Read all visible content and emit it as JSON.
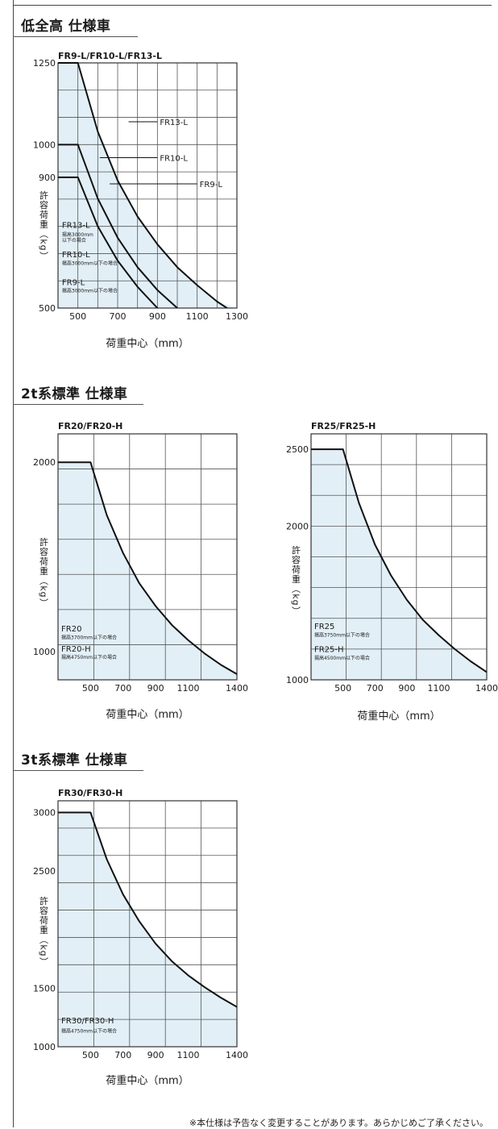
{
  "sections": [
    {
      "title": "低全高 仕様車"
    },
    {
      "title": "2t系標準 仕様車"
    },
    {
      "title": "3t系標準 仕様車"
    }
  ],
  "footer_note": "※本仕様は予告なく変更することがあります。あらかじめご了承ください。",
  "colors": {
    "fill": "#e2eff7",
    "grid": "#555555",
    "curve": "#111111",
    "text": "#1a1a1a"
  },
  "chart_data": [
    {
      "type": "line",
      "title": "FR9-L/FR10-L/FR13-L",
      "xlabel": "荷重中心（mm）",
      "ylabel": "許容荷重（kg）",
      "xlim": [
        400,
        1300
      ],
      "ylim": [
        500,
        1250
      ],
      "x_ticks": [
        500,
        700,
        900,
        1100,
        1300
      ],
      "x_tick_labels": [
        "500",
        "700",
        "900",
        "1100",
        "1300"
      ],
      "y_ticks": [
        500,
        900,
        1000,
        1250
      ],
      "y_tick_labels": [
        "500",
        "900",
        "1000",
        "1250"
      ],
      "grid": true,
      "series": [
        {
          "name": "FR13-L",
          "x": [
            400,
            500,
            600,
            700,
            800,
            900,
            1000,
            1100,
            1200,
            1300
          ],
          "y": [
            1250,
            1250,
            1040,
            890,
            780,
            695,
            625,
            570,
            520,
            480
          ]
        },
        {
          "name": "FR10-L",
          "x": [
            400,
            500,
            600,
            700,
            800,
            900,
            1000,
            1100
          ],
          "y": [
            1000,
            1000,
            835,
            715,
            625,
            555,
            500,
            455
          ]
        },
        {
          "name": "FR9-L",
          "x": [
            400,
            500,
            600,
            700,
            800,
            900,
            1000
          ],
          "y": [
            900,
            900,
            750,
            645,
            565,
            500,
            450
          ]
        }
      ],
      "annotations": [
        {
          "text": "FR13-L",
          "x": 420,
          "y": 745
        },
        {
          "text": "揚高3000mm",
          "x": 420,
          "y": 720
        },
        {
          "text": "以下の場合",
          "x": 420,
          "y": 702
        },
        {
          "text": "FR10-L",
          "x": 420,
          "y": 655
        },
        {
          "text": "揚高3000mm以下の場合",
          "x": 420,
          "y": 632
        },
        {
          "text": "FR9-L",
          "x": 420,
          "y": 570
        },
        {
          "text": "揚高3000mm以下の場合",
          "x": 420,
          "y": 548
        }
      ],
      "callouts": [
        {
          "text": "FR13-L",
          "from": [
            755,
            1070
          ],
          "to": [
            900,
            1070
          ]
        },
        {
          "text": "FR10-L",
          "from": [
            610,
            960
          ],
          "to": [
            900,
            960
          ]
        },
        {
          "text": "FR9-L",
          "from": [
            660,
            880
          ],
          "to": [
            1100,
            880
          ]
        }
      ]
    },
    {
      "type": "line",
      "title": "FR20/FR20-H",
      "xlabel": "荷重中心（mm）",
      "ylabel": "許容荷重（kg）",
      "xlim": [
        300,
        1400
      ],
      "ylim": [
        850,
        2150
      ],
      "x_ticks": [
        500,
        700,
        900,
        1100,
        1400
      ],
      "x_tick_labels": [
        "500",
        "700",
        "900",
        "1100",
        "1400"
      ],
      "y_ticks": [
        1000,
        2000
      ],
      "y_tick_labels": [
        "1000",
        "2000"
      ],
      "grid": true,
      "series": [
        {
          "name": "FR20/FR20-H",
          "x": [
            300,
            500,
            600,
            700,
            800,
            900,
            1000,
            1100,
            1200,
            1300,
            1400
          ],
          "y": [
            2000,
            2000,
            1720,
            1520,
            1360,
            1240,
            1140,
            1060,
            990,
            930,
            880
          ]
        }
      ],
      "annotations": [
        {
          "text": "FR20",
          "x": 320,
          "y": 1105
        },
        {
          "text": "揚高3700mm以下の場合",
          "x": 320,
          "y": 1065
        },
        {
          "text": "FR20-H",
          "x": 320,
          "y": 1000
        },
        {
          "text": "揚高4750mm以下の場合",
          "x": 320,
          "y": 960
        }
      ]
    },
    {
      "type": "line",
      "title": "FR25/FR25-H",
      "xlabel": "荷重中心（mm）",
      "ylabel": "許容荷重（kg）",
      "xlim": [
        300,
        1400
      ],
      "ylim": [
        1000,
        2600
      ],
      "x_ticks": [
        500,
        700,
        900,
        1100,
        1400
      ],
      "x_tick_labels": [
        "500",
        "700",
        "900",
        "1100",
        "1400"
      ],
      "y_ticks": [
        1000,
        2000,
        2500
      ],
      "y_tick_labels": [
        "1000",
        "2000",
        "2500"
      ],
      "grid": true,
      "series": [
        {
          "name": "FR25/FR25-H",
          "x": [
            300,
            500,
            600,
            700,
            800,
            900,
            1000,
            1100,
            1200,
            1300,
            1400
          ],
          "y": [
            2500,
            2500,
            2150,
            1880,
            1680,
            1520,
            1390,
            1290,
            1200,
            1120,
            1050
          ]
        }
      ],
      "annotations": [
        {
          "text": "FR25",
          "x": 320,
          "y": 1330
        },
        {
          "text": "揚高3750mm以下の場合",
          "x": 320,
          "y": 1280
        },
        {
          "text": "FR25-H",
          "x": 320,
          "y": 1180
        },
        {
          "text": "揚高4500mm以下の場合",
          "x": 320,
          "y": 1130
        }
      ]
    },
    {
      "type": "line",
      "title": "FR30/FR30-H",
      "xlabel": "荷重中心（mm）",
      "ylabel": "許容荷重（kg）",
      "xlim": [
        300,
        1400
      ],
      "ylim": [
        1000,
        3100
      ],
      "x_ticks": [
        500,
        700,
        900,
        1100,
        1400
      ],
      "x_tick_labels": [
        "500",
        "700",
        "900",
        "1100",
        "1400"
      ],
      "y_ticks": [
        1000,
        1500,
        2500,
        3000
      ],
      "y_tick_labels": [
        "1000",
        "1500",
        "2500",
        "3000"
      ],
      "grid": true,
      "series": [
        {
          "name": "FR30/FR30-H",
          "x": [
            300,
            500,
            600,
            700,
            800,
            900,
            1000,
            1100,
            1200,
            1300,
            1400
          ],
          "y": [
            3000,
            3000,
            2600,
            2300,
            2070,
            1880,
            1730,
            1610,
            1510,
            1420,
            1340
          ]
        }
      ],
      "annotations": [
        {
          "text": "FR30/FR30-H",
          "x": 320,
          "y": 1200
        },
        {
          "text": "揚高4750mm以下の場合",
          "x": 320,
          "y": 1120
        }
      ]
    }
  ]
}
